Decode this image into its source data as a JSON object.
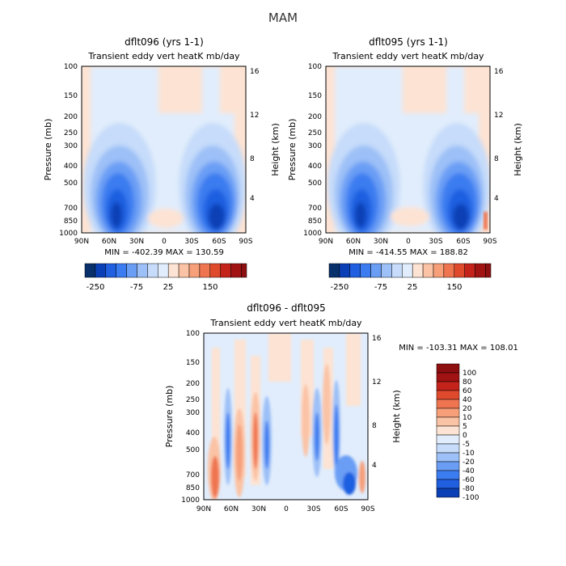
{
  "figure_title": "MAM",
  "colors": {
    "cool": [
      "#08306b",
      "#0a3fb5",
      "#1f5fe0",
      "#3b7cf0",
      "#6a9ef5",
      "#9cc0f7",
      "#c6dcfa",
      "#e1edfc"
    ],
    "warm": [
      "#fde3d3",
      "#fbc3a5",
      "#f69f79",
      "#ef7550",
      "#e04a2c",
      "#c3231a",
      "#8e0f10"
    ],
    "background_zero": "#ffffff"
  },
  "axes_common": {
    "pressure_ticks": [
      "100",
      "150",
      "200",
      "250",
      "300",
      "400",
      "500",
      "700",
      "850",
      "1000"
    ],
    "height_ticks": [
      "16",
      "12",
      "8",
      "4"
    ],
    "lat_ticks": [
      "90N",
      "60N",
      "30N",
      "0",
      "30S",
      "60S",
      "90S"
    ],
    "ylabel": "Pressure (mb)",
    "y2label": "Height (km)"
  },
  "panels": [
    {
      "id": "dflt096",
      "title": "dflt096 (yrs 1-1)",
      "subtitle": "Transient eddy vert heatK mb/day",
      "stats": "MIN = -402.39   MAX = 130.59",
      "colorbar_labels": [
        "-250",
        "-75",
        "25",
        "150"
      ]
    },
    {
      "id": "dflt095",
      "title": "dflt095 (yrs 1-1)",
      "subtitle": "Transient eddy vert heatK mb/day",
      "stats": "MIN = -414.55   MAX = 188.82",
      "colorbar_labels": [
        "-250",
        "-75",
        "25",
        "150"
      ]
    },
    {
      "id": "diff",
      "title": "dflt096 - dflt095",
      "subtitle": "Transient eddy vert heatK mb/day",
      "stats": "MIN = -103.31   MAX = 108.01",
      "colorbar_labels": [
        "100",
        "80",
        "60",
        "40",
        "20",
        "10",
        "5",
        "0",
        "-5",
        "-10",
        "-20",
        "-40",
        "-60",
        "-80",
        "-100"
      ]
    }
  ],
  "chart_data": [
    {
      "type": "heatmap",
      "title": "dflt096 (yrs 1-1)",
      "subtitle": "Transient eddy vert heatK mb/day",
      "xlabel": "",
      "ylabel": "Pressure (mb)",
      "y2label": "Height (km)",
      "x": [
        "90N",
        "60N",
        "30N",
        "0",
        "30S",
        "60S",
        "90S"
      ],
      "y": [
        100,
        150,
        200,
        250,
        300,
        400,
        500,
        700,
        850,
        1000
      ],
      "value_range": [
        -402.39,
        130.59
      ],
      "features": [
        {
          "location": "60N-30N, 850-400 mb",
          "sign": "negative",
          "peak": -250
        },
        {
          "location": "30S-60S, 850-400 mb",
          "sign": "negative",
          "peak": -250
        },
        {
          "location": "0, 700-850 mb",
          "sign": "positive",
          "peak": 25
        }
      ]
    },
    {
      "type": "heatmap",
      "title": "dflt095 (yrs 1-1)",
      "subtitle": "Transient eddy vert heatK mb/day",
      "xlabel": "",
      "ylabel": "Pressure (mb)",
      "y2label": "Height (km)",
      "x": [
        "90N",
        "60N",
        "30N",
        "0",
        "30S",
        "60S",
        "90S"
      ],
      "y": [
        100,
        150,
        200,
        250,
        300,
        400,
        500,
        700,
        850,
        1000
      ],
      "value_range": [
        -414.55,
        188.82
      ],
      "features": [
        {
          "location": "60N-30N, 850-400 mb",
          "sign": "negative",
          "peak": -250
        },
        {
          "location": "30S-60S, 850-400 mb",
          "sign": "negative",
          "peak": -250
        },
        {
          "location": "0, 700-850 mb",
          "sign": "positive",
          "peak": 25
        }
      ]
    },
    {
      "type": "heatmap",
      "title": "dflt096 - dflt095",
      "subtitle": "Transient eddy vert heatK mb/day",
      "xlabel": "",
      "ylabel": "Pressure (mb)",
      "y2label": "Height (km)",
      "x": [
        "90N",
        "60N",
        "30N",
        "0",
        "30S",
        "60S",
        "90S"
      ],
      "y": [
        100,
        150,
        200,
        250,
        300,
        400,
        500,
        700,
        850,
        1000
      ],
      "value_range": [
        -103.31,
        108.01
      ],
      "levels": [
        -100,
        -80,
        -60,
        -40,
        -20,
        -10,
        -5,
        0,
        5,
        10,
        20,
        40,
        60,
        80,
        100
      ]
    }
  ]
}
